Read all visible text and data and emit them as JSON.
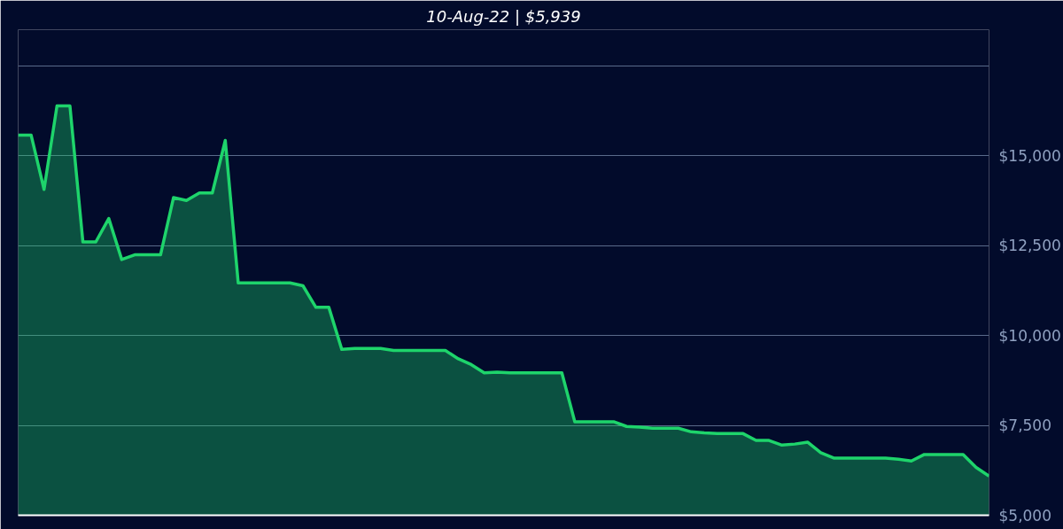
{
  "chart_data": {
    "type": "area",
    "title": "10-Aug-22 | $5,939",
    "categories": [
      null,
      null,
      null,
      null,
      null,
      null,
      null,
      null,
      null,
      null,
      null,
      null,
      null,
      null,
      null,
      null,
      null,
      null,
      null,
      null,
      null,
      null,
      null,
      null,
      null,
      null,
      null,
      null,
      null,
      null,
      null,
      null,
      null,
      null,
      null,
      null,
      null,
      null,
      null,
      null,
      null,
      null,
      null,
      null,
      null,
      null,
      null,
      null,
      null,
      null,
      null,
      null,
      null,
      null,
      null,
      null,
      null,
      null,
      null,
      null,
      null,
      null,
      null,
      null,
      null,
      null,
      null,
      null,
      null,
      null,
      null,
      null,
      null,
      null,
      null,
      null
    ],
    "series": [
      {
        "color": "#1ed46b",
        "values": [
          15570,
          15570,
          14060,
          16380,
          16380,
          12600,
          12600,
          13250,
          12110,
          12240,
          12240,
          12240,
          13830,
          13750,
          13960,
          13960,
          15420,
          11460,
          11460,
          11460,
          11460,
          11460,
          11380,
          10780,
          10780,
          9610,
          9640,
          9640,
          9640,
          9580,
          9580,
          9580,
          9580,
          9580,
          9350,
          9190,
          8960,
          8980,
          8960,
          8960,
          8960,
          8960,
          8960,
          7600,
          7600,
          7600,
          7600,
          7470,
          7450,
          7420,
          7420,
          7420,
          7320,
          7290,
          7270,
          7270,
          7270,
          7080,
          7080,
          6950,
          6980,
          7030,
          6740,
          6590,
          6590,
          6590,
          6590,
          6590,
          6560,
          6510,
          6690,
          6690,
          6690,
          6690,
          6330,
          6090
        ]
      }
    ],
    "ylim": [
      5000,
      18500
    ],
    "yticks": [
      {
        "value": 5000,
        "label": "$5,000"
      },
      {
        "value": 7500,
        "label": "$7,500"
      },
      {
        "value": 10000,
        "label": "$10,000"
      },
      {
        "value": 12500,
        "label": "$12,500"
      },
      {
        "value": 15000,
        "label": "$15,000"
      },
      {
        "value": 17500,
        "label": null
      }
    ],
    "grid": "y",
    "tick_labels": "y"
  }
}
